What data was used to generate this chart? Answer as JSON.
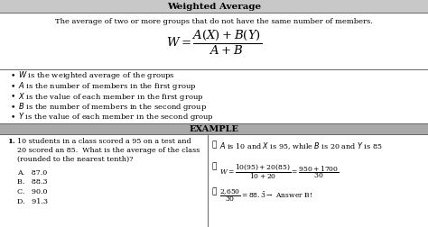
{
  "title": "Weighted Average",
  "header_bg": "#c8c8c8",
  "example_header_bg": "#a8a8a8",
  "page_bg": "#e8e8e8",
  "white_bg": "#ffffff",
  "border_color": "#666666",
  "definition_text": "The average of two or more groups that do not have the same number of members.",
  "bullets": [
    "$W$ is the weighted average of the groups",
    "$A$ is the number of members in the first group",
    "$X$ is the value of each member in the first group",
    "$B$ is the number of members in the second group",
    "$Y$ is the value of each member in the second group"
  ],
  "example_label": "EXAMPLE",
  "question_num": "1.",
  "question_line1": "10 students in a class scored a 95 on a test and",
  "question_line2": "20 scored an 85.  What is the average of the class",
  "question_line3": "(rounded to the nearest tenth)?",
  "answer_choices": [
    "A.   87.0",
    "B.   88.3",
    "C.   90.0",
    "D.   91.3"
  ],
  "check1": "$A$ is 10 and $X$ is 95, while $B$ is 20 and $Y$ is 85",
  "lw": 0.7
}
